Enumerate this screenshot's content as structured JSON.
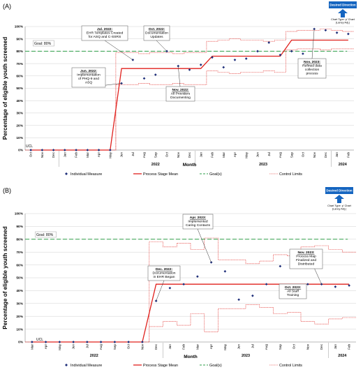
{
  "chart_data": [
    {
      "type": "line",
      "panel_label": "(A)",
      "ylabel": "Percentage of eligible youth screened",
      "xlabel": "Month",
      "ylim": [
        0,
        100
      ],
      "yticks": [
        "0%",
        "10%",
        "20%",
        "30%",
        "40%",
        "50%",
        "60%",
        "70%",
        "80%",
        "90%",
        "100%"
      ],
      "categories": [
        "Oct",
        "Nov",
        "Dec",
        "Jan",
        "Feb",
        "Mar",
        "Apr",
        "May",
        "Jun",
        "Jul",
        "Aug",
        "Sep",
        "Oct",
        "Nov",
        "Dec",
        "Jan",
        "Feb",
        "Mar",
        "Apr",
        "May",
        "Jun",
        "Jul",
        "Aug",
        "Sep",
        "Oct",
        "Nov",
        "Dec",
        "Jan",
        "Feb"
      ],
      "year_labels": [
        {
          "label": "2022",
          "at": 11
        },
        {
          "label": "2023",
          "at": 20.5
        },
        {
          "label": "2024",
          "at": 27.5
        }
      ],
      "year_breaks": [
        2.5,
        14.5,
        26.5
      ],
      "goal_label": "Goal: 80%",
      "ucl_label": "UCL",
      "goal": 80,
      "series": [
        {
          "name": "Individual Measure",
          "values": [
            0,
            0,
            0,
            0,
            0,
            0,
            0,
            0,
            54,
            73,
            58,
            61,
            80,
            68,
            65,
            69,
            75,
            67,
            73,
            74,
            80,
            87,
            77,
            80,
            78,
            98,
            97,
            95,
            94
          ]
        },
        {
          "name": "Process Stage Mean",
          "values": [
            0,
            0,
            0,
            0,
            0,
            0,
            0,
            0,
            66,
            66,
            66,
            66,
            66,
            66,
            66,
            66,
            76,
            76,
            76,
            76,
            76,
            76,
            76,
            89,
            89,
            89,
            89,
            89,
            89
          ]
        },
        {
          "name": "Control Limits",
          "upper": [
            0,
            0,
            0,
            0,
            0,
            0,
            0,
            0,
            79,
            79,
            78,
            79,
            79,
            78,
            79,
            79,
            88,
            89,
            90,
            89,
            89,
            88,
            89,
            96,
            97,
            97,
            98,
            97,
            96
          ],
          "lower": [
            0,
            0,
            0,
            0,
            0,
            0,
            0,
            0,
            53,
            53,
            54,
            53,
            53,
            54,
            53,
            53,
            64,
            63,
            62,
            63,
            63,
            64,
            63,
            81,
            82,
            82,
            81,
            82,
            82
          ]
        }
      ],
      "annotations": [
        {
          "title": "Jun. 2022:",
          "lines": [
            "Implementation",
            "of PHQ-9 and",
            "ASQ"
          ]
        },
        {
          "title": "Jul. 2022:",
          "lines": [
            "EHR Templates Created",
            "for ASQ and C-SSRS"
          ]
        },
        {
          "title": "Oct. 2022:",
          "lines": [
            "Documentation",
            "Updates"
          ]
        },
        {
          "title": "Nov. 2022:",
          "lines": [
            "All Providers",
            "Documenting"
          ]
        },
        {
          "title": "Nov. 2023:",
          "lines": [
            "Refined data",
            "collection",
            "process"
          ]
        }
      ],
      "desired_direction": "Desired Direction",
      "chart_type_note": [
        "Chart Type: p' Chart",
        "(Laney Adj.)"
      ],
      "legend": [
        "Individual Measure",
        "Process Stage Mean",
        "Goal(s)",
        "Control Limits"
      ]
    },
    {
      "type": "line",
      "panel_label": "(B)",
      "ylabel": "Percentage of eligible youth screened",
      "xlabel": "Month",
      "ylim": [
        0,
        100
      ],
      "yticks": [
        "0%",
        "10%",
        "20%",
        "30%",
        "40%",
        "50%",
        "60%",
        "70%",
        "80%",
        "90%",
        "100%"
      ],
      "categories": [
        "Mar",
        "Apr",
        "May",
        "Jun",
        "Jul",
        "Aug",
        "Sep",
        "Oct",
        "Nov",
        "Dec",
        "Jan",
        "Feb",
        "Mar",
        "Apr",
        "May",
        "Jun",
        "Jul",
        "Aug",
        "Sep",
        "Oct",
        "Nov",
        "Dec",
        "Jan",
        "Feb"
      ],
      "year_labels": [
        {
          "label": "2022",
          "at": 4.5
        },
        {
          "label": "2023",
          "at": 15.5
        },
        {
          "label": "2024",
          "at": 22.5
        }
      ],
      "year_breaks": [
        9.5,
        21.5
      ],
      "goal_label": "Goal: 80%",
      "ucl_label": "UCL",
      "goal": 80,
      "series": [
        {
          "name": "Individual Measure",
          "values": [
            0,
            0,
            0,
            0,
            0,
            0,
            0,
            0,
            0,
            32,
            42,
            45,
            51,
            62,
            55,
            33,
            36,
            45,
            59,
            38,
            45,
            45,
            43,
            44
          ]
        },
        {
          "name": "Process Stage Mean",
          "values": [
            0,
            0,
            0,
            0,
            0,
            0,
            0,
            0,
            0,
            45,
            45,
            45,
            45,
            45,
            45,
            45,
            45,
            45,
            45,
            45,
            45,
            45,
            45,
            45
          ]
        },
        {
          "name": "Control Limits",
          "upper": [
            0,
            0,
            0,
            0,
            0,
            0,
            0,
            0,
            0,
            78,
            74,
            77,
            72,
            81,
            64,
            64,
            61,
            63,
            68,
            67,
            74,
            75,
            72,
            70
          ],
          "lower": [
            0,
            0,
            0,
            0,
            0,
            0,
            0,
            0,
            0,
            12,
            16,
            13,
            22,
            8,
            26,
            26,
            29,
            27,
            22,
            23,
            16,
            14,
            18,
            19
          ]
        }
      ],
      "annotations": [
        {
          "title": "Dec. 2022:",
          "lines": [
            "Documentation",
            "in EHR Began"
          ]
        },
        {
          "title": "Apr. 2023:",
          "lines": [
            "Implemented",
            "Caring Contacts"
          ]
        },
        {
          "title": "Nov. 2023:",
          "lines": [
            "Process Map",
            "Finalized and",
            "Distributed"
          ]
        },
        {
          "title": "Oct. 2023:",
          "lines": [
            "All Staff",
            "Training"
          ]
        }
      ],
      "desired_direction": "Desired Direction",
      "chart_type_note": [
        "Chart Type: p' Chart",
        "(Laney Adj.)"
      ],
      "legend": [
        "Individual Measure",
        "Process Stage Mean",
        "Goal(s)",
        "Control Limits"
      ]
    }
  ],
  "colors": {
    "individual": "#1f2f7a",
    "mean": "#e0201c",
    "goal": "#2e9f48",
    "limits": "#e0201c",
    "arrow": "#1565c0",
    "grid": "#d0d0d0"
  }
}
